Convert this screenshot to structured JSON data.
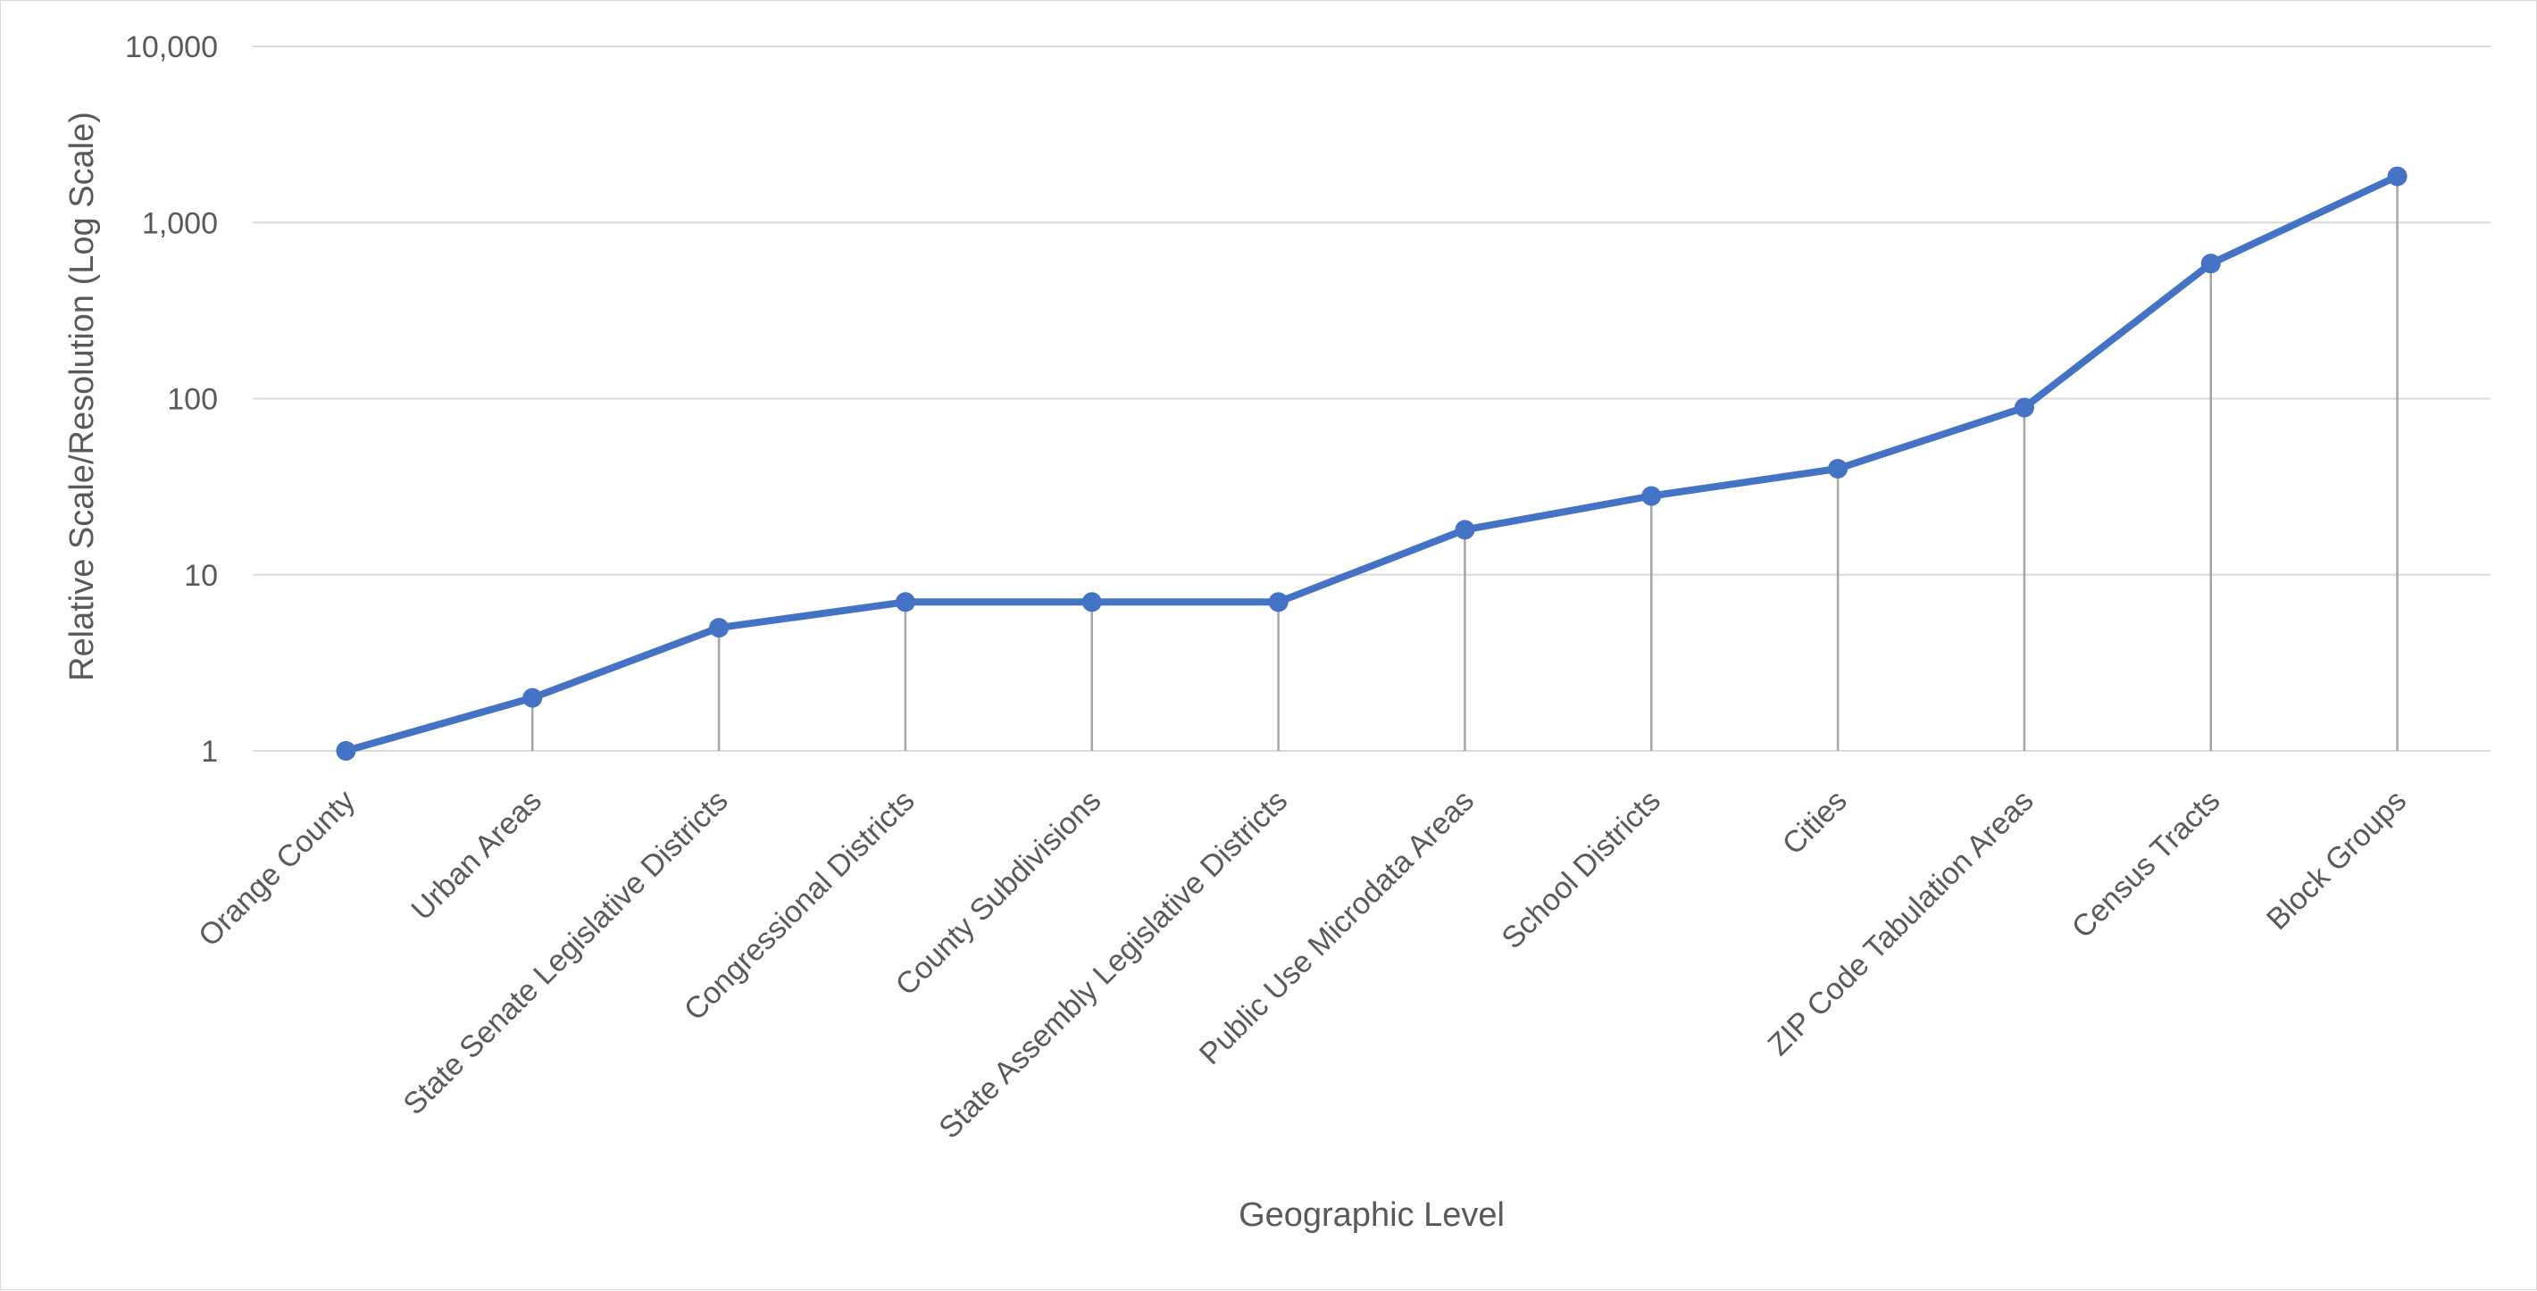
{
  "chart_data": {
    "type": "line",
    "title": "",
    "xlabel": "Geographic Level",
    "ylabel": "Relative Scale/Resolution  (Log Scale)",
    "yscale": "log",
    "ylim": [
      1,
      10000
    ],
    "yticks": [
      1,
      10,
      100,
      1000,
      10000
    ],
    "ytick_labels": [
      "1",
      "10",
      "100",
      "1,000",
      "10,000"
    ],
    "grid": true,
    "legend": "none",
    "drop_lines": true,
    "categories": [
      "Orange County",
      "Urban Areas",
      "State Senate Legislative Districts",
      "Congressional Districts",
      "County Subdivisions",
      "State Assembly Legislative Districts",
      "Public Use Microdata Areas",
      "School Districts",
      "Cities",
      "ZIP Code Tabulation Areas",
      "Census Tracts",
      "Block Groups"
    ],
    "series": [
      {
        "values": [
          1,
          2,
          5,
          7,
          7,
          7,
          18,
          28,
          40,
          89,
          585,
          1830
        ],
        "color": "#4472C4"
      }
    ],
    "colors": {
      "line": "#4472C4",
      "gridline": "#d9d9d9",
      "drop_line": "#a6a6a6",
      "text": "#595959"
    }
  }
}
